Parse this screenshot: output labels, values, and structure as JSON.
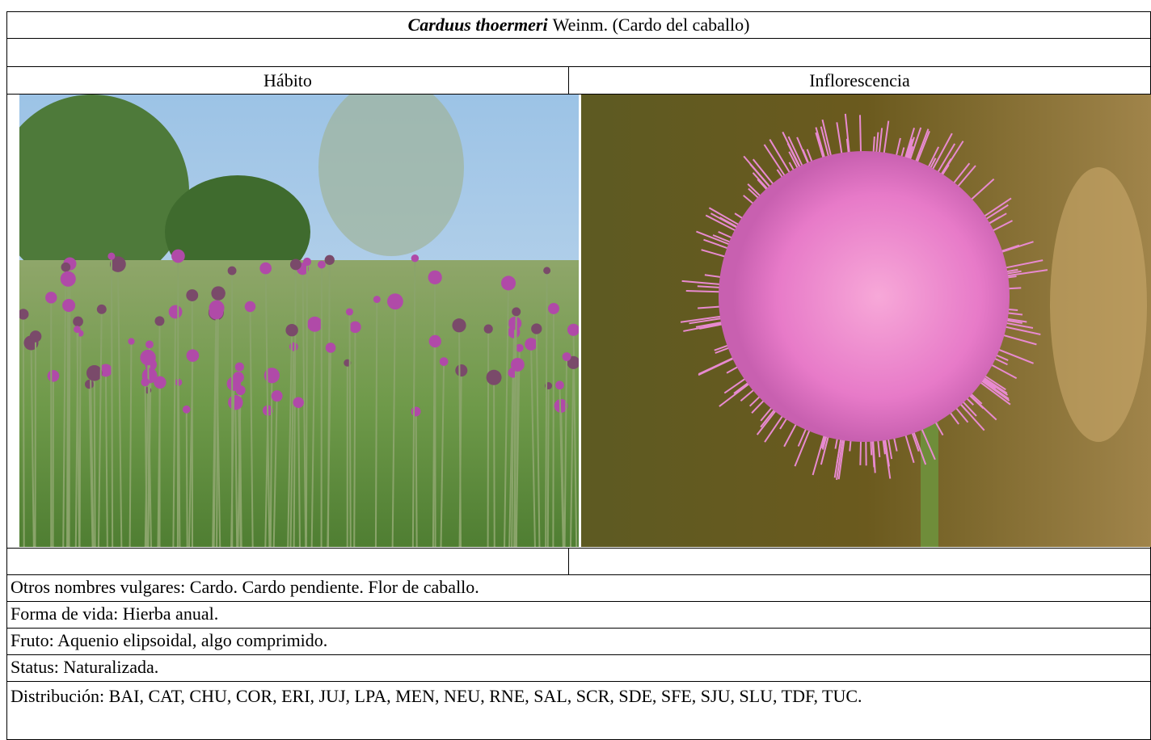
{
  "header": {
    "species": "Carduus thoermeri",
    "rest": "Weinm. (Cardo del caballo)"
  },
  "columns": [
    "Hábito",
    "Inflorescencia"
  ],
  "rows": [
    "Otros nombres vulgares: Cardo. Cardo pendiente. Flor de caballo.",
    "Forma de vida: Hierba anual.",
    "Fruto: Aquenio elipsoidal, algo comprimido.",
    "Status: Naturalizada.",
    "Distribución: BAI, CAT, CHU, COR, ERI, JUJ, LPA, MEN, NEU, RNE, SAL, SCR, SDE, SFE, SJU, SLU, TDF, TUC."
  ]
}
